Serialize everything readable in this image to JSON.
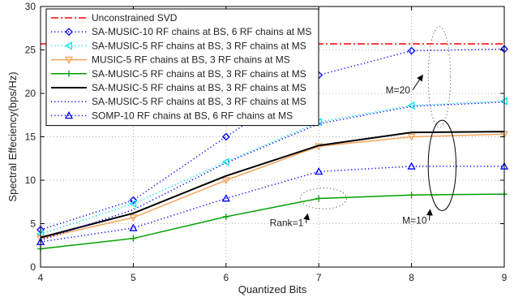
{
  "chart_data": {
    "type": "line",
    "title": "",
    "xlabel": "Quantized Bits",
    "ylabel": "Spectral Effeciency(bps/Hz)",
    "xlim": [
      4,
      9
    ],
    "ylim": [
      0,
      30
    ],
    "xticks": [
      4,
      5,
      6,
      7,
      8,
      9
    ],
    "yticks": [
      0,
      5,
      10,
      15,
      20,
      25,
      30
    ],
    "grid": true,
    "legend_position": "top-left",
    "x": [
      4,
      5,
      6,
      7,
      8,
      9
    ],
    "series": [
      {
        "name": "Unconstrained SVD",
        "color": "#ff0000",
        "dash": "dashdot",
        "marker": "none",
        "values": [
          25.7,
          25.7,
          25.7,
          25.7,
          25.7,
          25.7
        ]
      },
      {
        "name": "SA-MUSIC-10 RF chains at BS, 6 RF chains at MS",
        "color": "#0000ff",
        "dash": "dotted",
        "marker": "diamond",
        "values": [
          4.3,
          7.7,
          15.0,
          22.1,
          24.9,
          25.1
        ]
      },
      {
        "name": "SA-MUSIC-5 RF chains at BS, 3 RF chains at MS",
        "color": "#00e5ee",
        "dash": "dotted",
        "marker": "triangle-left",
        "values": [
          3.8,
          7.3,
          12.1,
          16.7,
          18.6,
          19.1
        ]
      },
      {
        "name": "MUSIC-5 RF chains at BS, 3 RF chains at MS",
        "color": "#f5a55a",
        "dash": "solid",
        "marker": "triangle-down",
        "values": [
          3.3,
          5.7,
          10.0,
          13.9,
          15.0,
          15.3
        ]
      },
      {
        "name": "SA-MUSIC-5 RF chains at BS, 3 RF chains at MS",
        "color": "#00a000",
        "dash": "solid",
        "marker": "plus",
        "values": [
          2.1,
          3.3,
          5.8,
          7.9,
          8.3,
          8.4
        ]
      },
      {
        "name": "SA-MUSIC-5 RF chains at BS, 3 RF chains at MS",
        "color": "#000000",
        "dash": "solid",
        "marker": "none",
        "values": [
          3.4,
          6.2,
          10.5,
          14.0,
          15.5,
          15.6
        ]
      },
      {
        "name": "SA-MUSIC-5 RF chains at BS, 3 RF chains at MS",
        "color": "#0000ff",
        "dash": "dotted",
        "marker": "none",
        "values": [
          3.1,
          6.6,
          12.0,
          16.5,
          18.5,
          19.0
        ]
      },
      {
        "name": "SOMP-10 RF chains at BS, 6 RF chains at MS",
        "color": "#0000ff",
        "dash": "dotted",
        "marker": "triangle-up",
        "values": [
          2.9,
          4.5,
          7.9,
          11.0,
          11.6,
          11.6
        ]
      }
    ],
    "annotations": [
      {
        "text": "M=20",
        "ellipse_color": "#555555",
        "ellipse_dash": "dotted",
        "ellipse_center": [
          8.3,
          21.9
        ],
        "ellipse_radii": [
          0.12,
          5.8
        ],
        "label_at": [
          7.72,
          20.0
        ],
        "arrow_to": [
          8.12,
          22.1
        ]
      },
      {
        "text": "M=10",
        "ellipse_color": "#000000",
        "ellipse_dash": "solid",
        "ellipse_center": [
          8.33,
          11.7
        ],
        "ellipse_radii": [
          0.15,
          5.2
        ],
        "label_at": [
          7.9,
          5.0
        ],
        "arrow_to": [
          8.2,
          6.6
        ]
      },
      {
        "text": "Rank=1",
        "ellipse_color": "#555555",
        "ellipse_dash": "dotted",
        "ellipse_center": [
          7.05,
          7.9
        ],
        "ellipse_radii": [
          0.25,
          1.2
        ],
        "label_at": [
          6.47,
          4.7
        ],
        "arrow_to": [
          6.88,
          6.1
        ]
      }
    ]
  }
}
